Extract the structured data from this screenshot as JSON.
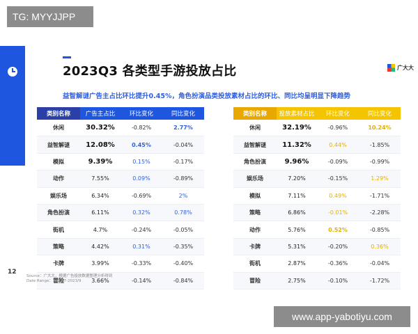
{
  "watermark_top": "TG: MYYJJPP",
  "watermark_bottom": "www.app-yabotiyu.com",
  "page_number": "12",
  "title": "2023Q3 各类型手游投放占比",
  "subtitle": "益智解谜广告主占比环比提升0.45%，角色扮演品类投放素材占比的环比、同比均呈明显下降趋势",
  "logo_text": "广大大",
  "colors": {
    "blue": "#1f56e0",
    "gold": "#f5c400"
  },
  "left_table": {
    "headers": [
      "类别名称",
      "广告主占比",
      "环比变化",
      "同比变化"
    ],
    "rows": [
      {
        "name": "休闲",
        "share": "30.32%",
        "mom": "-0.82%",
        "yoy": "2.77%"
      },
      {
        "name": "益智解谜",
        "share": "12.08%",
        "mom": "0.45%",
        "yoy": "-0.04%"
      },
      {
        "name": "模拟",
        "share": "9.39%",
        "mom": "0.15%",
        "yoy": "-0.17%"
      },
      {
        "name": "动作",
        "share": "7.55%",
        "mom": "0.09%",
        "yoy": "-0.89%"
      },
      {
        "name": "娱乐场",
        "share": "6.34%",
        "mom": "-0.69%",
        "yoy": "2%"
      },
      {
        "name": "角色扮演",
        "share": "6.11%",
        "mom": "0.32%",
        "yoy": "0.78%"
      },
      {
        "name": "街机",
        "share": "4.7%",
        "mom": "-0.24%",
        "yoy": "-0.05%"
      },
      {
        "name": "策略",
        "share": "4.42%",
        "mom": "0.31%",
        "yoy": "-0.35%"
      },
      {
        "name": "卡牌",
        "share": "3.99%",
        "mom": "-0.33%",
        "yoy": "-0.40%"
      },
      {
        "name": "冒险",
        "share": "3.66%",
        "mom": "-0.14%",
        "yoy": "-0.84%"
      }
    ]
  },
  "right_table": {
    "headers": [
      "类别名称",
      "投放素材占比",
      "环比变化",
      "同比变化"
    ],
    "rows": [
      {
        "name": "休闲",
        "share": "32.19%",
        "mom": "-0.96%",
        "yoy": "10.24%"
      },
      {
        "name": "益智解谜",
        "share": "11.32%",
        "mom": "0.44%",
        "yoy": "-1.85%"
      },
      {
        "name": "角色扮演",
        "share": "9.96%",
        "mom": "-0.09%",
        "yoy": "-0.99%"
      },
      {
        "name": "娱乐场",
        "share": "7.20%",
        "mom": "-0.15%",
        "yoy": "1.29%"
      },
      {
        "name": "模拟",
        "share": "7.11%",
        "mom": "0.49%",
        "yoy": "-1.71%"
      },
      {
        "name": "策略",
        "share": "6.86%",
        "mom": "-0.01%",
        "yoy": "-2.28%"
      },
      {
        "name": "动作",
        "share": "5.76%",
        "mom": "0.52%",
        "yoy": "-0.85%"
      },
      {
        "name": "卡牌",
        "share": "5.31%",
        "mom": "-0.20%",
        "yoy": "0.36%"
      },
      {
        "name": "街机",
        "share": "2.87%",
        "mom": "-0.36%",
        "yoy": "-0.04%"
      },
      {
        "name": "冒险",
        "share": "2.75%",
        "mom": "-0.10%",
        "yoy": "-1.72%"
      }
    ]
  },
  "source": {
    "line1": "Source：广大大，根据广告投放数据整理分析得到",
    "line2": "Date Range：2022/7-2023/9"
  }
}
